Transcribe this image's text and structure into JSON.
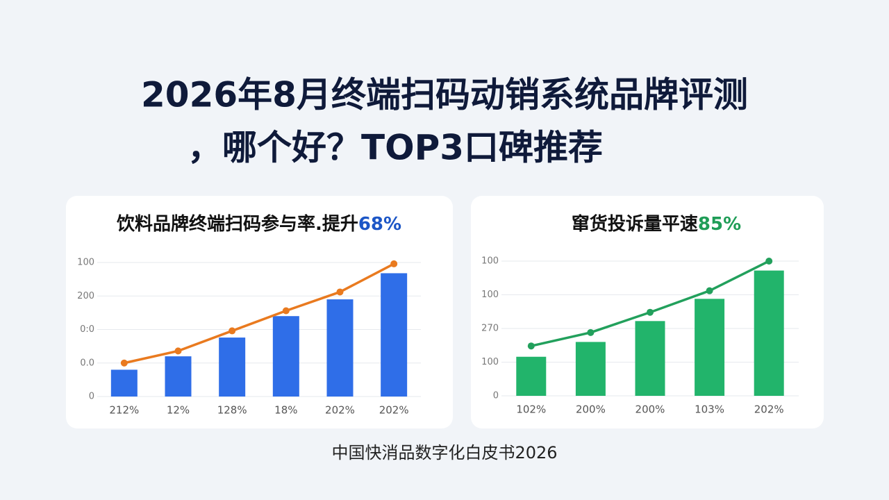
{
  "title": [
    "2026年8月终端扫码动销系统品牌评测",
    "，哪个好？TOP3口碑推荐"
  ],
  "source": "中国快消品数字化白皮书2026",
  "chart_data": [
    {
      "type": "combo",
      "title": "饮料品牌终端扫码参与率.提升",
      "title_highlight": "68%",
      "highlight_color": "#1c56c6",
      "categories": [
        "212%",
        "12%",
        "128%",
        "18%",
        "202%",
        "202%"
      ],
      "series": [
        {
          "type": "bar",
          "color": "#2f6ee8",
          "values": [
            20,
            30,
            44,
            60,
            72.5,
            92
          ]
        },
        {
          "type": "line",
          "color": "#e97a1f",
          "values": [
            25,
            34,
            49,
            64,
            78,
            99
          ]
        }
      ],
      "ylim": [
        0,
        100
      ],
      "yticks": [
        0,
        {
          "value": 25,
          "label": "0.0"
        },
        {
          "value": 50,
          "label": "0:0"
        },
        {
          "value": 75,
          "label": "200"
        },
        100
      ],
      "grid": true
    },
    {
      "type": "combo",
      "title": "窜货投诉量平速",
      "title_highlight": "85%",
      "highlight_color": "#1f9d57",
      "categories": [
        "102%",
        "200%",
        "200%",
        "103%",
        "202%"
      ],
      "series": [
        {
          "type": "bar",
          "color": "#22b46b",
          "values": [
            29,
            40,
            55.5,
            72,
            93
          ]
        },
        {
          "type": "line",
          "color": "#22a05c",
          "values": [
            37,
            47,
            62,
            78,
            100
          ]
        }
      ],
      "ylim": [
        0,
        100
      ],
      "yticks": [
        0,
        {
          "value": 25,
          "label": "100"
        },
        {
          "value": 50,
          "label": "270"
        },
        {
          "value": 75,
          "label": "100"
        },
        100
      ],
      "grid": true
    }
  ]
}
